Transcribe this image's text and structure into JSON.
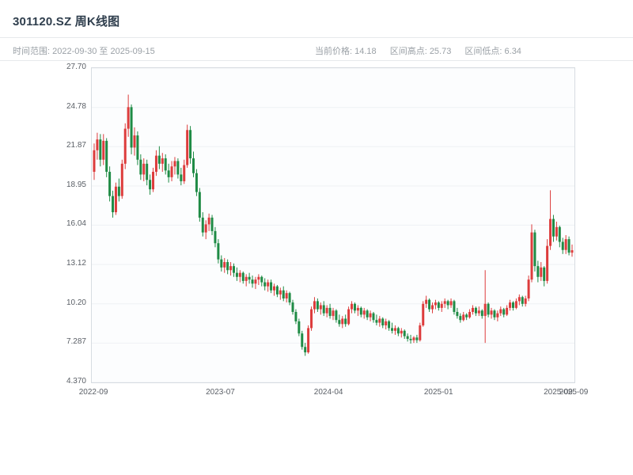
{
  "header": {
    "title": "301120.SZ 周K线图",
    "time_range_label": "时间范围: 2022-09-30 至 2025-09-15",
    "stat_current": "当前价格: 14.18",
    "stat_high": "区间高点: 25.73",
    "stat_low": "区间低点: 6.34"
  },
  "chart_data": {
    "type": "candlestick",
    "title": "301120.SZ 周K线图",
    "symbol": "301120.SZ",
    "period": "weekly",
    "start_date": "2022-09-30",
    "end_date": "2025-09-15",
    "current_price": 14.18,
    "range_high": 25.73,
    "range_low": 6.34,
    "ylim": [
      4.37,
      27.7
    ],
    "y_ticks": [
      "27.70",
      "24.78",
      "21.87",
      "18.95",
      "16.04",
      "13.12",
      "10.20",
      "7.287",
      "4.370"
    ],
    "x_ticks": [
      {
        "label": "2022-09",
        "pos": 0.005
      },
      {
        "label": "2023-07",
        "pos": 0.268
      },
      {
        "label": "2024-04",
        "pos": 0.492
      },
      {
        "label": "2025-01",
        "pos": 0.72
      },
      {
        "label": "2025-09",
        "pos": 0.968
      },
      {
        "label": "2025-09",
        "pos": 1.0
      }
    ],
    "grid": true,
    "up_color": "#dd3c3c",
    "down_color": "#1f8b45",
    "ohlc_format": [
      "open",
      "high",
      "low",
      "close"
    ],
    "ohlc": [
      [
        20.0,
        22.1,
        19.4,
        21.6
      ],
      [
        21.6,
        22.9,
        20.9,
        22.4
      ],
      [
        22.4,
        22.8,
        20.4,
        20.9
      ],
      [
        20.9,
        22.8,
        20.5,
        22.3
      ],
      [
        22.3,
        22.5,
        19.6,
        20.0
      ],
      [
        20.0,
        20.4,
        17.8,
        18.2
      ],
      [
        18.2,
        18.6,
        16.6,
        17.0
      ],
      [
        17.0,
        19.2,
        16.8,
        18.9
      ],
      [
        18.9,
        19.5,
        17.8,
        18.2
      ],
      [
        18.2,
        20.9,
        18.0,
        20.6
      ],
      [
        20.6,
        23.6,
        20.2,
        23.2
      ],
      [
        23.2,
        25.73,
        22.6,
        24.8
      ],
      [
        24.8,
        25.0,
        21.3,
        21.8
      ],
      [
        21.8,
        23.3,
        21.2,
        22.7
      ],
      [
        22.7,
        23.0,
        20.5,
        20.9
      ],
      [
        20.9,
        21.3,
        19.4,
        19.8
      ],
      [
        19.8,
        21.0,
        19.3,
        20.6
      ],
      [
        20.6,
        20.9,
        19.0,
        19.4
      ],
      [
        19.4,
        19.8,
        18.3,
        18.7
      ],
      [
        18.7,
        20.3,
        18.5,
        20.0
      ],
      [
        20.0,
        21.6,
        19.7,
        21.2
      ],
      [
        21.2,
        21.9,
        20.2,
        20.6
      ],
      [
        20.6,
        21.4,
        20.0,
        21.0
      ],
      [
        21.0,
        21.3,
        19.8,
        20.1
      ],
      [
        20.1,
        20.6,
        19.2,
        19.6
      ],
      [
        19.6,
        20.8,
        19.3,
        20.4
      ],
      [
        20.4,
        21.1,
        19.8,
        20.8
      ],
      [
        20.8,
        21.0,
        19.5,
        19.8
      ],
      [
        19.8,
        20.3,
        19.0,
        19.3
      ],
      [
        19.3,
        20.9,
        19.1,
        20.5
      ],
      [
        20.5,
        23.5,
        20.3,
        23.1
      ],
      [
        23.1,
        23.4,
        20.6,
        21.0
      ],
      [
        21.0,
        21.5,
        19.6,
        19.9
      ],
      [
        19.9,
        20.2,
        18.2,
        18.5
      ],
      [
        18.5,
        18.8,
        16.3,
        16.6
      ],
      [
        16.6,
        17.0,
        15.2,
        15.5
      ],
      [
        15.5,
        16.4,
        15.0,
        16.1
      ],
      [
        16.1,
        16.9,
        15.6,
        16.6
      ],
      [
        16.6,
        16.8,
        15.3,
        15.6
      ],
      [
        15.6,
        15.9,
        14.4,
        14.7
      ],
      [
        14.7,
        15.0,
        13.2,
        13.5
      ],
      [
        13.5,
        13.8,
        12.6,
        12.9
      ],
      [
        12.9,
        13.6,
        12.5,
        13.3
      ],
      [
        13.3,
        13.5,
        12.4,
        12.7
      ],
      [
        12.7,
        13.3,
        12.3,
        13.0
      ],
      [
        13.0,
        13.2,
        12.2,
        12.5
      ],
      [
        12.5,
        12.9,
        11.9,
        12.2
      ],
      [
        12.2,
        12.7,
        11.8,
        12.5
      ],
      [
        12.5,
        12.6,
        11.7,
        11.9
      ],
      [
        11.9,
        12.4,
        11.5,
        12.2
      ],
      [
        12.2,
        12.5,
        11.7,
        12.0
      ],
      [
        12.0,
        12.3,
        11.4,
        11.7
      ],
      [
        11.7,
        12.2,
        11.3,
        12.0
      ],
      [
        12.0,
        12.4,
        11.6,
        12.2
      ],
      [
        12.2,
        12.3,
        11.5,
        11.8
      ],
      [
        11.8,
        12.1,
        11.2,
        11.5
      ],
      [
        11.5,
        12.0,
        11.1,
        11.8
      ],
      [
        11.8,
        12.0,
        11.0,
        11.2
      ],
      [
        11.2,
        11.7,
        10.8,
        11.5
      ],
      [
        11.5,
        11.6,
        10.7,
        10.9
      ],
      [
        10.9,
        11.4,
        10.5,
        11.2
      ],
      [
        11.2,
        11.5,
        10.4,
        10.6
      ],
      [
        10.6,
        11.2,
        10.3,
        11.0
      ],
      [
        11.0,
        11.1,
        10.1,
        10.3
      ],
      [
        10.3,
        10.5,
        9.4,
        9.6
      ],
      [
        9.6,
        9.8,
        8.7,
        8.9
      ],
      [
        8.9,
        9.1,
        7.8,
        8.0
      ],
      [
        8.0,
        8.2,
        6.8,
        7.0
      ],
      [
        7.0,
        7.3,
        6.34,
        6.6
      ],
      [
        6.6,
        8.6,
        6.5,
        8.4
      ],
      [
        8.4,
        10.0,
        8.2,
        9.8
      ],
      [
        9.8,
        10.7,
        9.5,
        10.4
      ],
      [
        10.4,
        10.6,
        9.6,
        9.8
      ],
      [
        9.8,
        10.3,
        9.4,
        10.1
      ],
      [
        10.1,
        10.4,
        9.3,
        9.5
      ],
      [
        9.5,
        10.1,
        9.2,
        9.9
      ],
      [
        9.9,
        10.2,
        9.1,
        9.3
      ],
      [
        9.3,
        9.9,
        9.0,
        9.7
      ],
      [
        9.7,
        9.8,
        8.8,
        9.0
      ],
      [
        9.0,
        9.4,
        8.5,
        8.7
      ],
      [
        8.7,
        9.3,
        8.4,
        9.1
      ],
      [
        9.1,
        9.4,
        8.5,
        8.7
      ],
      [
        8.7,
        10.0,
        8.6,
        9.8
      ],
      [
        9.8,
        10.4,
        9.5,
        10.2
      ],
      [
        10.2,
        10.3,
        9.5,
        9.7
      ],
      [
        9.7,
        10.1,
        9.3,
        9.9
      ],
      [
        9.9,
        10.0,
        9.2,
        9.4
      ],
      [
        9.4,
        9.9,
        9.1,
        9.7
      ],
      [
        9.7,
        9.8,
        9.0,
        9.2
      ],
      [
        9.2,
        9.7,
        8.9,
        9.5
      ],
      [
        9.5,
        9.6,
        8.8,
        9.0
      ],
      [
        9.0,
        9.4,
        8.6,
        8.8
      ],
      [
        8.8,
        9.3,
        8.5,
        9.1
      ],
      [
        9.1,
        9.2,
        8.4,
        8.6
      ],
      [
        8.6,
        9.1,
        8.3,
        8.9
      ],
      [
        8.9,
        9.0,
        8.2,
        8.4
      ],
      [
        8.4,
        8.8,
        8.0,
        8.2
      ],
      [
        8.2,
        8.6,
        7.9,
        8.4
      ],
      [
        8.4,
        8.5,
        7.8,
        8.0
      ],
      [
        8.0,
        8.4,
        7.7,
        8.2
      ],
      [
        8.2,
        8.3,
        7.6,
        7.8
      ],
      [
        7.8,
        8.0,
        7.4,
        7.6
      ],
      [
        7.6,
        7.9,
        7.25,
        7.5
      ],
      [
        7.5,
        7.8,
        7.3,
        7.7
      ],
      [
        7.7,
        7.9,
        7.3,
        7.5
      ],
      [
        7.5,
        8.8,
        7.4,
        8.6
      ],
      [
        8.6,
        10.4,
        8.5,
        10.2
      ],
      [
        10.2,
        10.8,
        9.9,
        10.5
      ],
      [
        10.5,
        10.6,
        9.6,
        9.8
      ],
      [
        9.8,
        10.3,
        9.5,
        10.1
      ],
      [
        10.1,
        10.5,
        9.8,
        10.3
      ],
      [
        10.3,
        10.4,
        9.7,
        9.9
      ],
      [
        9.9,
        10.4,
        9.6,
        10.2
      ],
      [
        10.2,
        10.6,
        9.9,
        10.4
      ],
      [
        10.4,
        10.5,
        9.8,
        10.1
      ],
      [
        10.1,
        10.6,
        9.9,
        10.4
      ],
      [
        10.4,
        10.5,
        9.4,
        9.6
      ],
      [
        9.6,
        9.9,
        9.1,
        9.3
      ],
      [
        9.3,
        9.5,
        8.8,
        9.0
      ],
      [
        9.0,
        9.6,
        8.9,
        9.4
      ],
      [
        9.4,
        9.5,
        9.0,
        9.2
      ],
      [
        9.2,
        9.8,
        9.1,
        9.6
      ],
      [
        9.6,
        10.1,
        9.4,
        9.9
      ],
      [
        9.9,
        10.0,
        9.3,
        9.5
      ],
      [
        9.5,
        10.0,
        9.3,
        9.7
      ],
      [
        9.7,
        9.8,
        9.1,
        9.3
      ],
      [
        9.3,
        12.7,
        7.3,
        10.2
      ],
      [
        10.2,
        10.3,
        9.2,
        9.4
      ],
      [
        9.4,
        9.9,
        9.1,
        9.7
      ],
      [
        9.7,
        9.8,
        9.0,
        9.2
      ],
      [
        9.2,
        9.7,
        8.9,
        9.5
      ],
      [
        9.5,
        10.0,
        9.3,
        9.8
      ],
      [
        9.8,
        9.9,
        9.2,
        9.4
      ],
      [
        9.4,
        10.1,
        9.3,
        9.9
      ],
      [
        9.9,
        10.5,
        9.7,
        10.3
      ],
      [
        10.3,
        10.4,
        9.7,
        9.9
      ],
      [
        9.9,
        10.6,
        9.8,
        10.4
      ],
      [
        10.4,
        10.9,
        10.1,
        10.7
      ],
      [
        10.7,
        10.8,
        10.0,
        10.2
      ],
      [
        10.2,
        10.8,
        10.0,
        10.6
      ],
      [
        10.6,
        12.3,
        10.4,
        12.0
      ],
      [
        12.0,
        16.1,
        11.8,
        15.5
      ],
      [
        15.5,
        15.7,
        12.6,
        13.0
      ],
      [
        13.0,
        13.4,
        11.8,
        12.2
      ],
      [
        12.2,
        13.3,
        11.9,
        12.9
      ],
      [
        12.9,
        13.0,
        11.5,
        11.9
      ],
      [
        11.9,
        15.0,
        11.7,
        14.5
      ],
      [
        14.5,
        18.63,
        14.2,
        16.5
      ],
      [
        16.5,
        16.8,
        14.8,
        15.2
      ],
      [
        15.2,
        16.3,
        14.9,
        15.9
      ],
      [
        15.9,
        16.0,
        14.4,
        14.8
      ],
      [
        14.8,
        15.1,
        13.9,
        14.2
      ],
      [
        14.2,
        15.3,
        13.9,
        15.0
      ],
      [
        15.0,
        15.2,
        13.8,
        14.0
      ],
      [
        14.0,
        14.6,
        13.7,
        14.18
      ]
    ]
  }
}
